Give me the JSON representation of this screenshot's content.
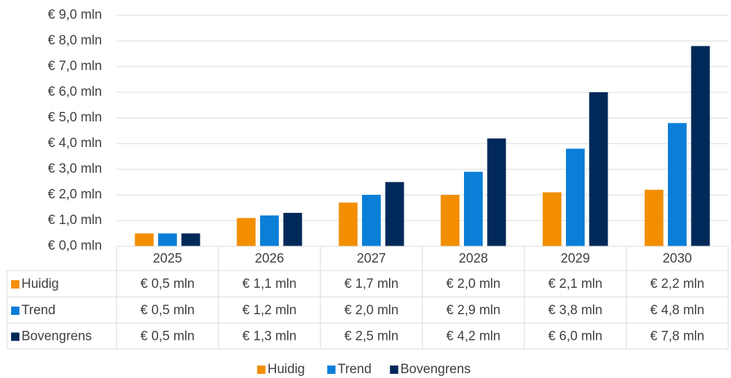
{
  "chart_data": {
    "type": "bar",
    "categories": [
      "2025",
      "2026",
      "2027",
      "2028",
      "2029",
      "2030"
    ],
    "series": [
      {
        "name": "Huidig",
        "color": "#f28e00",
        "values": [
          0.5,
          1.1,
          1.7,
          2.0,
          2.1,
          2.2
        ],
        "value_labels": [
          "€ 0,5 mln",
          "€ 1,1 mln",
          "€ 1,7 mln",
          "€ 2,0 mln",
          "€ 2,1 mln",
          "€ 2,2 mln"
        ]
      },
      {
        "name": "Trend",
        "color": "#0a7fd8",
        "values": [
          0.5,
          1.2,
          2.0,
          2.9,
          3.8,
          4.8
        ],
        "value_labels": [
          "€ 0,5 mln",
          "€ 1,2 mln",
          "€ 2,0 mln",
          "€ 2,9 mln",
          "€ 3,8 mln",
          "€ 4,8 mln"
        ]
      },
      {
        "name": "Bovengrens",
        "color": "#00295a",
        "values": [
          0.5,
          1.3,
          2.5,
          4.2,
          6.0,
          7.8
        ],
        "value_labels": [
          "€ 0,5 mln",
          "€ 1,3 mln",
          "€ 2,5 mln",
          "€ 4,2 mln",
          "€ 6,0 mln",
          "€ 7,8 mln"
        ]
      }
    ],
    "ylim": [
      0,
      9
    ],
    "yticks": [
      {
        "value": 0,
        "label": "€ 0,0 mln"
      },
      {
        "value": 1,
        "label": "€ 1,0 mln"
      },
      {
        "value": 2,
        "label": "€ 2,0 mln"
      },
      {
        "value": 3,
        "label": "€ 3,0 mln"
      },
      {
        "value": 4,
        "label": "€ 4,0 mln"
      },
      {
        "value": 5,
        "label": "€ 5,0 mln"
      },
      {
        "value": 6,
        "label": "€ 6,0 mln"
      },
      {
        "value": 7,
        "label": "€ 7,0 mln"
      },
      {
        "value": 8,
        "label": "€ 8,0 mln"
      },
      {
        "value": 9,
        "label": "€ 9,0 mln"
      }
    ],
    "grid": true,
    "legend": "bottom",
    "data_table": true
  }
}
